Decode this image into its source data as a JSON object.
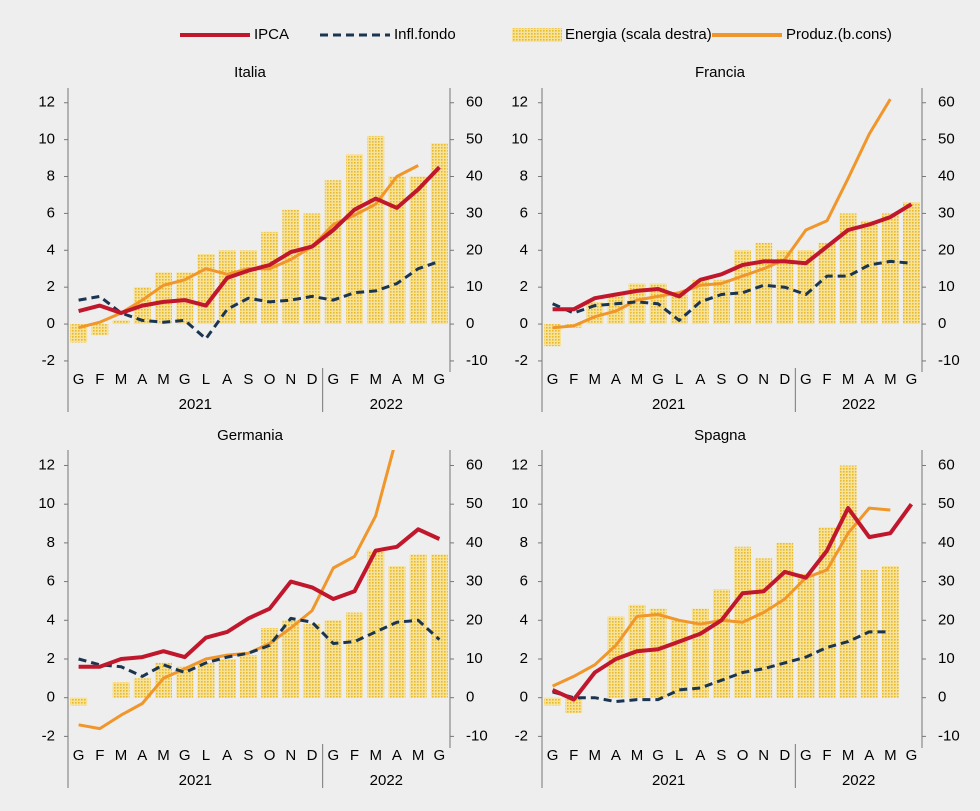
{
  "chart_data": [
    {
      "type": "combo",
      "title": "Italia",
      "categories": [
        "G",
        "F",
        "M",
        "A",
        "M",
        "G",
        "L",
        "A",
        "S",
        "O",
        "N",
        "D",
        "G",
        "F",
        "M",
        "A",
        "M",
        "G"
      ],
      "groups": [
        {
          "label": "2021",
          "span": 12
        },
        {
          "label": "2022",
          "span": 6
        }
      ],
      "ylim": [
        -2.6,
        12.8
      ],
      "yticks": [
        -2,
        0,
        2,
        4,
        6,
        8,
        10,
        12
      ],
      "y2lim": [
        -13,
        64
      ],
      "y2ticks": [
        -10,
        0,
        10,
        20,
        30,
        40,
        50,
        60
      ],
      "series": [
        {
          "name": "IPCA",
          "color": "#c0172c",
          "style": "solid",
          "values": [
            0.7,
            1.0,
            0.6,
            1.0,
            1.2,
            1.3,
            1.0,
            2.5,
            2.9,
            3.2,
            3.9,
            4.2,
            5.1,
            6.2,
            6.8,
            6.3,
            7.3,
            8.5
          ]
        },
        {
          "name": "Infl.fondo",
          "color": "#1b3550",
          "style": "dashed",
          "values": [
            1.3,
            1.5,
            0.6,
            0.2,
            0.1,
            0.2,
            -0.8,
            0.8,
            1.4,
            1.2,
            1.3,
            1.5,
            1.3,
            1.7,
            1.8,
            2.2,
            3.0,
            3.4
          ]
        },
        {
          "name": "Energia (scala destra)",
          "color": "#f2c94c",
          "style": "bar",
          "axis": "y2",
          "values": [
            -5,
            -3,
            1,
            10,
            14,
            14,
            19,
            20,
            20,
            25,
            31,
            30,
            39,
            46,
            51,
            40,
            40,
            49
          ]
        },
        {
          "name": "Produz.(b.cons)",
          "color": "#f0962a",
          "style": "solid",
          "values": [
            -0.2,
            0.1,
            0.6,
            1.3,
            2.1,
            2.4,
            3.0,
            2.7,
            3.0,
            3.0,
            3.5,
            4.2,
            5.4,
            5.9,
            6.5,
            8.0,
            8.6,
            null
          ]
        }
      ]
    },
    {
      "type": "combo",
      "title": "Francia",
      "categories": [
        "G",
        "F",
        "M",
        "A",
        "M",
        "G",
        "L",
        "A",
        "S",
        "O",
        "N",
        "D",
        "G",
        "F",
        "M",
        "A",
        "M",
        "G"
      ],
      "groups": [
        {
          "label": "2021",
          "span": 12
        },
        {
          "label": "2022",
          "span": 6
        }
      ],
      "ylim": [
        -2.6,
        12.8
      ],
      "yticks": [
        -2,
        0,
        2,
        4,
        6,
        8,
        10,
        12
      ],
      "y2lim": [
        -13,
        64
      ],
      "y2ticks": [
        -10,
        0,
        10,
        20,
        30,
        40,
        50,
        60
      ],
      "series": [
        {
          "name": "IPCA",
          "color": "#c0172c",
          "style": "solid",
          "values": [
            0.8,
            0.8,
            1.4,
            1.6,
            1.8,
            1.9,
            1.5,
            2.4,
            2.7,
            3.2,
            3.4,
            3.4,
            3.3,
            4.2,
            5.1,
            5.4,
            5.8,
            6.5
          ]
        },
        {
          "name": "Infl.fondo",
          "color": "#1b3550",
          "style": "dashed",
          "values": [
            1.1,
            0.6,
            1.0,
            1.1,
            1.2,
            1.1,
            0.2,
            1.2,
            1.6,
            1.7,
            2.1,
            2.0,
            1.6,
            2.6,
            2.6,
            3.2,
            3.4,
            3.3
          ]
        },
        {
          "name": "Energia (scala destra)",
          "color": "#f2c94c",
          "style": "bar",
          "axis": "y2",
          "values": [
            -6,
            -1,
            6,
            8,
            11,
            11,
            8,
            12,
            12,
            20,
            22,
            20,
            20,
            22,
            30,
            28,
            30,
            33
          ]
        },
        {
          "name": "Produz.(b.cons)",
          "color": "#f0962a",
          "style": "solid",
          "values": [
            -0.2,
            -0.1,
            0.4,
            0.7,
            1.3,
            1.5,
            1.7,
            2.1,
            2.2,
            2.6,
            3.0,
            3.5,
            5.1,
            5.6,
            7.9,
            10.3,
            12.2,
            null
          ]
        }
      ]
    },
    {
      "type": "combo",
      "title": "Germania",
      "categories": [
        "G",
        "F",
        "M",
        "A",
        "M",
        "G",
        "L",
        "A",
        "S",
        "O",
        "N",
        "D",
        "G",
        "F",
        "M",
        "A",
        "M",
        "G"
      ],
      "groups": [
        {
          "label": "2021",
          "span": 12
        },
        {
          "label": "2022",
          "span": 6
        }
      ],
      "ylim": [
        -2.6,
        12.8
      ],
      "yticks": [
        -2,
        0,
        2,
        4,
        6,
        8,
        10,
        12
      ],
      "y2lim": [
        -13,
        64
      ],
      "y2ticks": [
        -10,
        0,
        10,
        20,
        30,
        40,
        50,
        60
      ],
      "series": [
        {
          "name": "IPCA",
          "color": "#c0172c",
          "style": "solid",
          "values": [
            1.6,
            1.6,
            2.0,
            2.1,
            2.4,
            2.1,
            3.1,
            3.4,
            4.1,
            4.6,
            6.0,
            5.7,
            5.1,
            5.5,
            7.6,
            7.8,
            8.7,
            8.2
          ]
        },
        {
          "name": "Infl.fondo",
          "color": "#1b3550",
          "style": "dashed",
          "values": [
            2.0,
            1.7,
            1.6,
            1.1,
            1.7,
            1.3,
            1.8,
            2.1,
            2.3,
            2.7,
            4.1,
            3.9,
            2.8,
            2.9,
            3.4,
            3.9,
            4.0,
            3.0
          ]
        },
        {
          "name": "Energia (scala destra)",
          "color": "#f2c94c",
          "style": "bar",
          "axis": "y2",
          "values": [
            -2,
            0,
            4,
            5,
            9,
            8,
            9,
            10,
            11,
            18,
            20,
            19,
            20,
            22,
            38,
            34,
            37,
            37
          ]
        },
        {
          "name": "Produz.(b.cons)",
          "color": "#f0962a",
          "style": "solid",
          "values": [
            -1.4,
            -1.6,
            -0.9,
            -0.3,
            1.0,
            1.5,
            2.0,
            2.2,
            2.3,
            2.8,
            3.6,
            4.5,
            6.7,
            7.3,
            9.4,
            13.5,
            null,
            null
          ]
        }
      ]
    },
    {
      "type": "combo",
      "title": "Spagna",
      "categories": [
        "G",
        "F",
        "M",
        "A",
        "M",
        "G",
        "L",
        "A",
        "S",
        "O",
        "N",
        "D",
        "G",
        "F",
        "M",
        "A",
        "M",
        "G"
      ],
      "groups": [
        {
          "label": "2021",
          "span": 12
        },
        {
          "label": "2022",
          "span": 6
        }
      ],
      "ylim": [
        -2.6,
        12.8
      ],
      "yticks": [
        -2,
        0,
        2,
        4,
        6,
        8,
        10,
        12
      ],
      "y2lim": [
        -13,
        64
      ],
      "y2ticks": [
        -10,
        0,
        10,
        20,
        30,
        40,
        50,
        60
      ],
      "series": [
        {
          "name": "IPCA",
          "color": "#c0172c",
          "style": "solid",
          "values": [
            0.4,
            -0.1,
            1.3,
            2.0,
            2.4,
            2.5,
            2.9,
            3.3,
            4.0,
            5.4,
            5.5,
            6.5,
            6.2,
            7.6,
            9.8,
            8.3,
            8.5,
            10.0
          ]
        },
        {
          "name": "Infl.fondo",
          "color": "#1b3550",
          "style": "dashed",
          "values": [
            0.3,
            0.0,
            0.0,
            -0.2,
            -0.1,
            -0.1,
            0.4,
            0.5,
            0.9,
            1.3,
            1.5,
            1.8,
            2.1,
            2.6,
            2.9,
            3.4,
            3.4,
            null
          ]
        },
        {
          "name": "Energia (scala destra)",
          "color": "#f2c94c",
          "style": "bar",
          "axis": "y2",
          "values": [
            -2,
            -4,
            0,
            21,
            24,
            23,
            20,
            23,
            28,
            39,
            36,
            40,
            32,
            44,
            60,
            33,
            34,
            null
          ]
        },
        {
          "name": "Produz.(b.cons)",
          "color": "#f0962a",
          "style": "solid",
          "values": [
            0.6,
            1.1,
            1.7,
            2.7,
            4.2,
            4.3,
            4.0,
            3.8,
            4.0,
            3.9,
            4.4,
            5.1,
            6.2,
            6.6,
            8.5,
            9.8,
            9.7,
            null
          ]
        }
      ]
    }
  ]
}
